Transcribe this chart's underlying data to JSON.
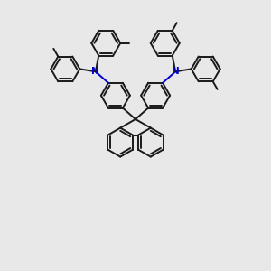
{
  "bg_color": "#e8e8e8",
  "bond_color": "#1a1a1a",
  "N_color": "#0000cc",
  "line_width": 1.4,
  "figsize": [
    3.0,
    3.0
  ],
  "dpi": 100,
  "r": 16
}
